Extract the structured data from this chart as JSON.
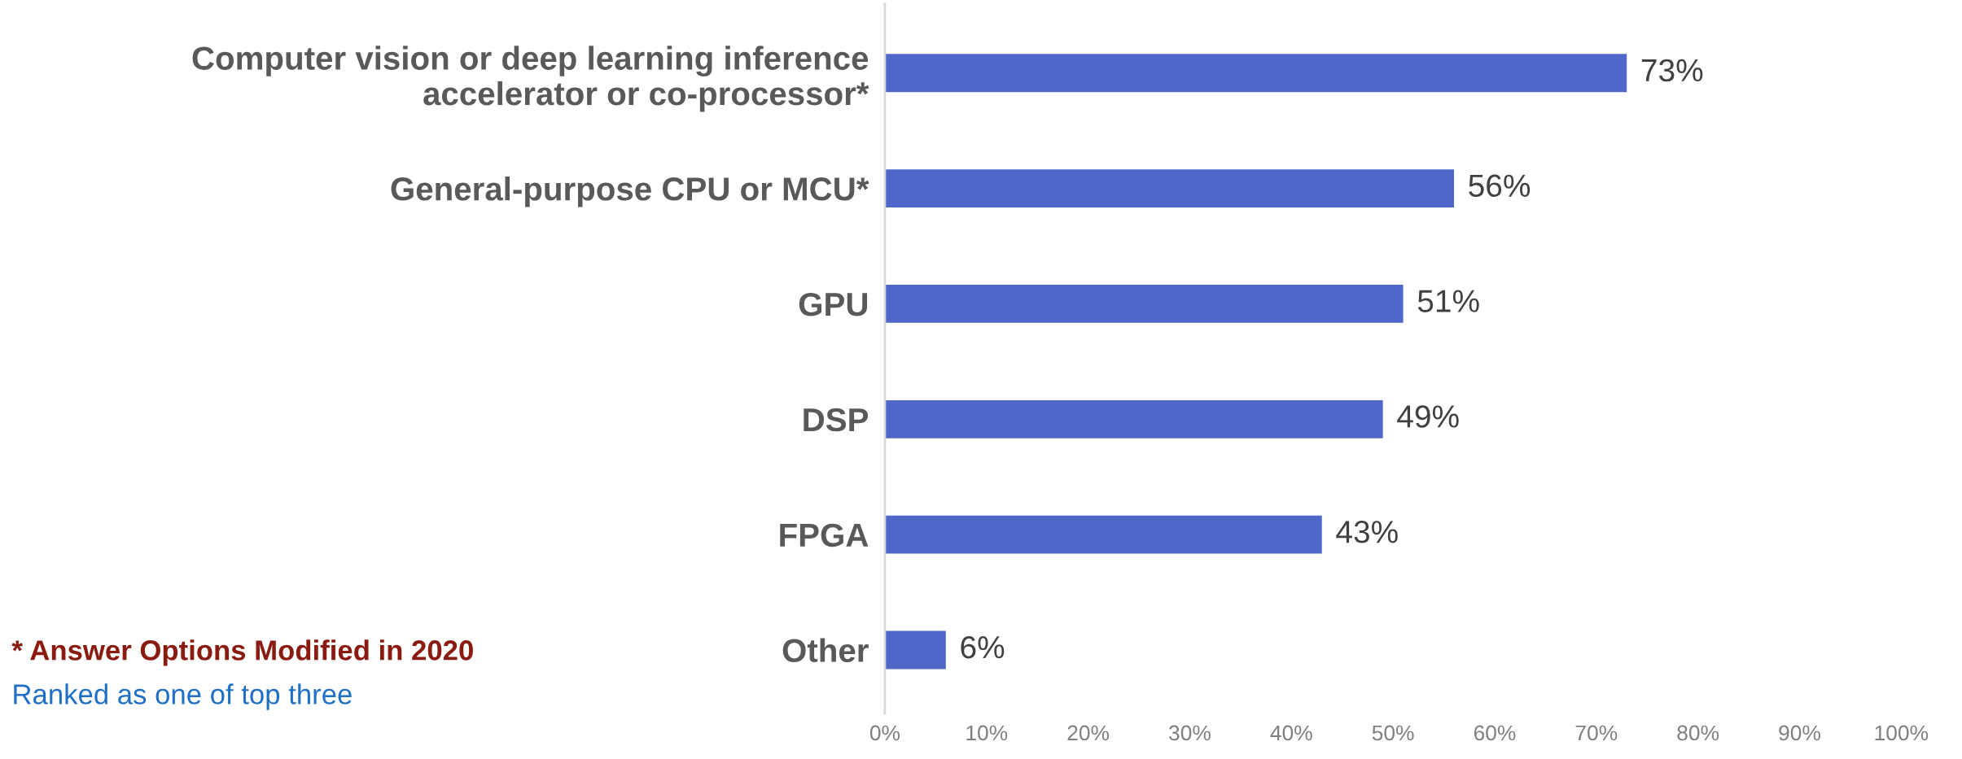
{
  "chart_data": {
    "type": "bar",
    "orientation": "horizontal",
    "categories": [
      "Computer vision or deep learning inference\naccelerator or co-processor*",
      "General-purpose CPU or MCU*",
      "GPU",
      "DSP",
      "FPGA",
      "Other"
    ],
    "values": [
      73,
      56,
      51,
      49,
      43,
      6
    ],
    "color": "#4f67c9",
    "value_labels": [
      "73%",
      "56%",
      "51%",
      "49%",
      "43%",
      "6%"
    ],
    "xlim": [
      0,
      100
    ],
    "xticks": [
      {
        "value": 0,
        "label": "0%"
      },
      {
        "value": 10,
        "label": "10%"
      },
      {
        "value": 20,
        "label": "20%"
      },
      {
        "value": 30,
        "label": "30%"
      },
      {
        "value": 40,
        "label": "40%"
      },
      {
        "value": 50,
        "label": "50%"
      },
      {
        "value": 60,
        "label": "60%"
      },
      {
        "value": 70,
        "label": "70%"
      },
      {
        "value": 80,
        "label": "80%"
      },
      {
        "value": 90,
        "label": "90%"
      },
      {
        "value": 100,
        "label": "100%"
      }
    ],
    "grid": false,
    "legend": false,
    "annotations": [
      "* Answer Options Modified in 2020",
      "Ranked as one of top three"
    ]
  }
}
